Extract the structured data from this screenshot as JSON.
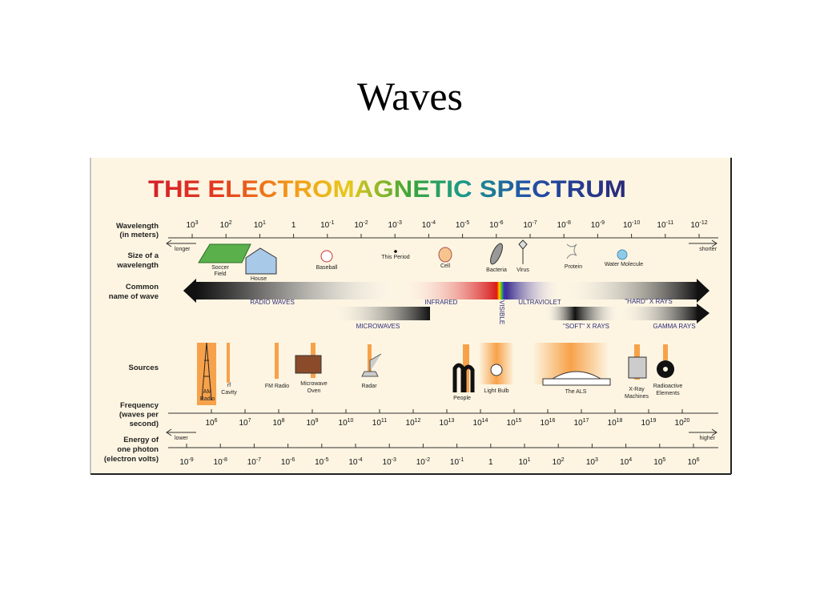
{
  "slide": {
    "title": "Waves"
  },
  "diagram": {
    "title": "THE ELECTROMAGNETIC SPECTRUM",
    "wavelength": {
      "label": [
        "Wavelength",
        "(in meters)"
      ],
      "longer": "longer",
      "shorter": "shorter",
      "ticks": [
        {
          "base": "10",
          "exp": "3"
        },
        {
          "base": "10",
          "exp": "2"
        },
        {
          "base": "10",
          "exp": "1"
        },
        {
          "base": "1"
        },
        {
          "base": "10",
          "exp": "-1"
        },
        {
          "base": "10",
          "exp": "-2"
        },
        {
          "base": "10",
          "exp": "-3"
        },
        {
          "base": "10",
          "exp": "-4"
        },
        {
          "base": "10",
          "exp": "-5"
        },
        {
          "base": "10",
          "exp": "-6"
        },
        {
          "base": "10",
          "exp": "-7"
        },
        {
          "base": "10",
          "exp": "-8"
        },
        {
          "base": "10",
          "exp": "-9"
        },
        {
          "base": "10",
          "exp": "-10"
        },
        {
          "base": "10",
          "exp": "-11"
        },
        {
          "base": "10",
          "exp": "-12"
        }
      ]
    },
    "size": {
      "label": [
        "Size of a",
        "wavelength"
      ],
      "items": [
        [
          "Soccer",
          "Field"
        ],
        [
          "House"
        ],
        [
          "Baseball"
        ],
        [
          "This Period"
        ],
        [
          "Cell"
        ],
        [
          "Bacteria"
        ],
        [
          "Virus"
        ],
        [
          "Protein"
        ],
        [
          "Water Molecule"
        ]
      ]
    },
    "names": {
      "label": [
        "Common",
        "name of wave"
      ],
      "items": [
        "RADIO WAVES",
        "INFRARED",
        "VISIBLE",
        "ULTRAVIOLET",
        "\"HARD\" X RAYS",
        "MICROWAVES",
        "\"SOFT\" X RAYS",
        "GAMMA RAYS"
      ]
    },
    "sources": {
      "label": [
        "Sources"
      ],
      "items": [
        [
          "AM",
          "Radio"
        ],
        [
          "rf",
          "Cavity"
        ],
        [
          "FM Radio"
        ],
        [
          "Microwave",
          "Oven"
        ],
        [
          "Radar"
        ],
        [
          "People"
        ],
        [
          "Light Bulb"
        ],
        [
          "The ALS"
        ],
        [
          "X-Ray",
          "Machines"
        ],
        [
          "Radioactive",
          "Elements"
        ]
      ]
    },
    "frequency": {
      "label": [
        "Frequency",
        "(waves per",
        "second)"
      ],
      "ticks": [
        {
          "base": "10",
          "exp": "6"
        },
        {
          "base": "10",
          "exp": "7"
        },
        {
          "base": "10",
          "exp": "8"
        },
        {
          "base": "10",
          "exp": "9"
        },
        {
          "base": "10",
          "exp": "10"
        },
        {
          "base": "10",
          "exp": "11"
        },
        {
          "base": "10",
          "exp": "12"
        },
        {
          "base": "10",
          "exp": "13"
        },
        {
          "base": "10",
          "exp": "14"
        },
        {
          "base": "10",
          "exp": "15"
        },
        {
          "base": "10",
          "exp": "16"
        },
        {
          "base": "10",
          "exp": "17"
        },
        {
          "base": "10",
          "exp": "18"
        },
        {
          "base": "10",
          "exp": "19"
        },
        {
          "base": "10",
          "exp": "20"
        }
      ]
    },
    "energy": {
      "label": [
        "Energy of",
        "one photon",
        "(electron volts)"
      ],
      "lower": "lower",
      "higher": "higher",
      "ticks": [
        {
          "base": "10",
          "exp": "-9"
        },
        {
          "base": "10",
          "exp": "-8"
        },
        {
          "base": "10",
          "exp": "-7"
        },
        {
          "base": "10",
          "exp": "-6"
        },
        {
          "base": "10",
          "exp": "-5"
        },
        {
          "base": "10",
          "exp": "-4"
        },
        {
          "base": "10",
          "exp": "-3"
        },
        {
          "base": "10",
          "exp": "-2"
        },
        {
          "base": "10",
          "exp": "-1"
        },
        {
          "base": "1"
        },
        {
          "base": "10",
          "exp": "1"
        },
        {
          "base": "10",
          "exp": "2"
        },
        {
          "base": "10",
          "exp": "3"
        },
        {
          "base": "10",
          "exp": "4"
        },
        {
          "base": "10",
          "exp": "5"
        },
        {
          "base": "10",
          "exp": "6"
        }
      ]
    }
  }
}
